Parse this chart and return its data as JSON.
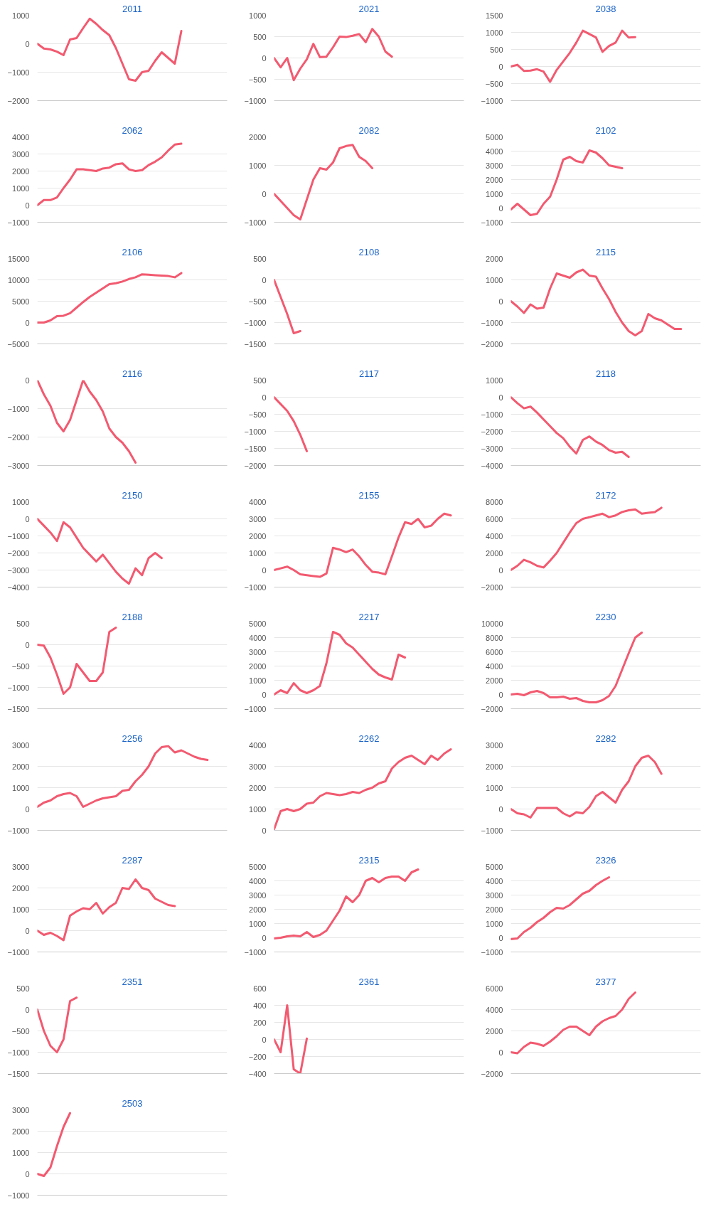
{
  "chart_data": [
    {
      "type": "line",
      "title": "2011",
      "color": "#f25a70",
      "grid": "y",
      "ylim": [
        -2000,
        1000
      ],
      "yticks": [
        -2000,
        -1000,
        0,
        1000
      ],
      "categories": [
        null,
        null,
        null,
        null,
        null,
        null,
        null,
        null,
        null,
        null,
        null,
        null,
        null,
        null,
        null,
        null,
        null,
        null,
        null,
        null,
        null,
        null,
        null,
        null,
        null,
        null,
        null,
        null,
        null,
        null
      ],
      "values": [
        0,
        -170,
        -200,
        -280,
        -400,
        150,
        200,
        550,
        880,
        700,
        480,
        300,
        -150,
        -700,
        -1250,
        -1300,
        -1000,
        -950,
        -600,
        -300,
        -500,
        -700,
        450,
        null,
        null,
        null,
        null,
        null,
        null,
        null
      ]
    },
    {
      "type": "line",
      "title": "2021",
      "color": "#f25a70",
      "grid": "y",
      "ylim": [
        -1000,
        1000
      ],
      "yticks": [
        -1000,
        -500,
        0,
        500,
        1000
      ],
      "categories": [
        null,
        null,
        null,
        null,
        null,
        null,
        null,
        null,
        null,
        null,
        null,
        null,
        null,
        null,
        null,
        null,
        null,
        null,
        null,
        null,
        null,
        null,
        null,
        null,
        null,
        null,
        null,
        null,
        null,
        null
      ],
      "values": [
        0,
        -220,
        0,
        -520,
        -250,
        -30,
        330,
        20,
        30,
        250,
        500,
        490,
        520,
        560,
        370,
        680,
        500,
        150,
        30,
        null,
        null,
        null,
        null,
        null,
        null,
        null,
        null,
        null,
        null,
        null
      ]
    },
    {
      "type": "line",
      "title": "2038",
      "color": "#f25a70",
      "grid": "y",
      "ylim": [
        -1000,
        1500
      ],
      "yticks": [
        -1000,
        -500,
        0,
        500,
        1000,
        1500
      ],
      "categories": [
        null,
        null,
        null,
        null,
        null,
        null,
        null,
        null,
        null,
        null,
        null,
        null,
        null,
        null,
        null,
        null,
        null,
        null,
        null,
        null,
        null,
        null,
        null,
        null,
        null,
        null,
        null,
        null,
        null,
        null
      ],
      "values": [
        0,
        50,
        -130,
        -120,
        -80,
        -150,
        -450,
        -100,
        150,
        400,
        700,
        1050,
        950,
        850,
        430,
        600,
        700,
        1050,
        850,
        860,
        null,
        null,
        null,
        null,
        null,
        null,
        null,
        null,
        null,
        null
      ]
    },
    {
      "type": "line",
      "title": "2062",
      "color": "#f25a70",
      "grid": "y",
      "ylim": [
        -1000,
        4000
      ],
      "yticks": [
        -1000,
        0,
        1000,
        2000,
        3000,
        4000
      ],
      "categories": [
        null,
        null,
        null,
        null,
        null,
        null,
        null,
        null,
        null,
        null,
        null,
        null,
        null,
        null,
        null,
        null,
        null,
        null,
        null,
        null,
        null,
        null,
        null,
        null,
        null,
        null,
        null,
        null,
        null,
        null
      ],
      "values": [
        0,
        300,
        300,
        450,
        1000,
        1500,
        2100,
        2100,
        2050,
        2000,
        2150,
        2200,
        2400,
        2450,
        2100,
        2000,
        2050,
        2350,
        2550,
        2800,
        3200,
        3550,
        3600,
        null,
        null,
        null,
        null,
        null,
        null,
        null
      ]
    },
    {
      "type": "line",
      "title": "2082",
      "color": "#f25a70",
      "grid": "y",
      "ylim": [
        -1000,
        2000
      ],
      "yticks": [
        -1000,
        0,
        1000,
        2000
      ],
      "categories": [
        null,
        null,
        null,
        null,
        null,
        null,
        null,
        null,
        null,
        null,
        null,
        null,
        null,
        null,
        null,
        null,
        null,
        null,
        null,
        null,
        null,
        null,
        null,
        null,
        null,
        null,
        null,
        null,
        null,
        null
      ],
      "values": [
        0,
        -250,
        -500,
        -750,
        -900,
        -200,
        500,
        900,
        850,
        1100,
        1600,
        1680,
        1720,
        1300,
        1150,
        900,
        null,
        null,
        null,
        null,
        null,
        null,
        null,
        null,
        null,
        null,
        null,
        null,
        null,
        null
      ]
    },
    {
      "type": "line",
      "title": "2102",
      "color": "#f25a70",
      "grid": "y",
      "ylim": [
        -1000,
        5000
      ],
      "yticks": [
        -1000,
        0,
        1000,
        2000,
        3000,
        4000,
        5000
      ],
      "categories": [
        null,
        null,
        null,
        null,
        null,
        null,
        null,
        null,
        null,
        null,
        null,
        null,
        null,
        null,
        null,
        null,
        null,
        null,
        null,
        null,
        null,
        null,
        null,
        null,
        null,
        null,
        null,
        null,
        null,
        null
      ],
      "values": [
        -100,
        300,
        -100,
        -500,
        -400,
        300,
        800,
        2000,
        3400,
        3600,
        3300,
        3200,
        4050,
        3900,
        3500,
        3000,
        2900,
        2800,
        null,
        null,
        null,
        null,
        null,
        null,
        null,
        null,
        null,
        null,
        null,
        null
      ]
    },
    {
      "type": "line",
      "title": "2106",
      "color": "#f25a70",
      "grid": "y",
      "ylim": [
        -5000,
        15000
      ],
      "yticks": [
        -5000,
        0,
        5000,
        10000,
        15000
      ],
      "categories": [
        null,
        null,
        null,
        null,
        null,
        null,
        null,
        null,
        null,
        null,
        null,
        null,
        null,
        null,
        null,
        null,
        null,
        null,
        null,
        null,
        null,
        null,
        null,
        null,
        null,
        null,
        null,
        null,
        null,
        null
      ],
      "values": [
        0,
        0,
        500,
        1500,
        1600,
        2200,
        3500,
        4800,
        6000,
        7000,
        8000,
        9000,
        9200,
        9600,
        10200,
        10600,
        11300,
        11200,
        11100,
        11000,
        10900,
        10600,
        11600,
        null,
        null,
        null,
        null,
        null,
        null,
        null
      ]
    },
    {
      "type": "line",
      "title": "2108",
      "color": "#f25a70",
      "grid": "y",
      "ylim": [
        -1500,
        500
      ],
      "yticks": [
        -1500,
        -1000,
        -500,
        0,
        500
      ],
      "categories": [
        null,
        null,
        null,
        null,
        null,
        null,
        null,
        null,
        null,
        null,
        null,
        null,
        null,
        null,
        null,
        null,
        null,
        null,
        null,
        null,
        null,
        null,
        null,
        null,
        null,
        null,
        null,
        null,
        null,
        null
      ],
      "values": [
        0,
        -400,
        -800,
        -1250,
        -1200,
        null,
        null,
        null,
        null,
        null,
        null,
        null,
        null,
        null,
        null,
        null,
        null,
        null,
        null,
        null,
        null,
        null,
        null,
        null,
        null,
        null,
        null,
        null,
        null,
        null
      ]
    },
    {
      "type": "line",
      "title": "2115",
      "color": "#f25a70",
      "grid": "y",
      "ylim": [
        -2000,
        2000
      ],
      "yticks": [
        -2000,
        -1000,
        0,
        1000,
        2000
      ],
      "categories": [
        null,
        null,
        null,
        null,
        null,
        null,
        null,
        null,
        null,
        null,
        null,
        null,
        null,
        null,
        null,
        null,
        null,
        null,
        null,
        null,
        null,
        null,
        null,
        null,
        null,
        null,
        null,
        null,
        null,
        null
      ],
      "values": [
        0,
        -250,
        -550,
        -150,
        -350,
        -300,
        600,
        1300,
        1200,
        1100,
        1350,
        1480,
        1200,
        1150,
        600,
        100,
        -500,
        -1000,
        -1400,
        -1600,
        -1400,
        -600,
        -800,
        -900,
        -1100,
        -1300,
        -1300,
        null,
        null,
        null
      ]
    },
    {
      "type": "line",
      "title": "2116",
      "color": "#f25a70",
      "grid": "y",
      "ylim": [
        -3000,
        0
      ],
      "yticks": [
        -3000,
        -2000,
        -1000,
        0
      ],
      "categories": [
        null,
        null,
        null,
        null,
        null,
        null,
        null,
        null,
        null,
        null,
        null,
        null,
        null,
        null,
        null,
        null,
        null,
        null,
        null,
        null,
        null,
        null,
        null,
        null,
        null,
        null,
        null,
        null,
        null,
        null
      ],
      "values": [
        0,
        -500,
        -900,
        -1500,
        -1800,
        -1400,
        -700,
        0,
        -400,
        -700,
        -1100,
        -1700,
        -2000,
        -2200,
        -2500,
        -2900,
        null,
        null,
        null,
        null,
        null,
        null,
        null,
        null,
        null,
        null,
        null,
        null,
        null,
        null
      ]
    },
    {
      "type": "line",
      "title": "2117",
      "color": "#f25a70",
      "grid": "y",
      "ylim": [
        -2000,
        500
      ],
      "yticks": [
        -2000,
        -1500,
        -1000,
        -500,
        0,
        500
      ],
      "categories": [
        null,
        null,
        null,
        null,
        null,
        null,
        null,
        null,
        null,
        null,
        null,
        null,
        null,
        null,
        null,
        null,
        null,
        null,
        null,
        null,
        null,
        null,
        null,
        null,
        null,
        null,
        null,
        null,
        null,
        null
      ],
      "values": [
        0,
        -200,
        -400,
        -700,
        -1100,
        -1580,
        null,
        null,
        null,
        null,
        null,
        null,
        null,
        null,
        null,
        null,
        null,
        null,
        null,
        null,
        null,
        null,
        null,
        null,
        null,
        null,
        null,
        null,
        null,
        null
      ]
    },
    {
      "type": "line",
      "title": "2118",
      "color": "#f25a70",
      "grid": "y",
      "ylim": [
        -4000,
        1000
      ],
      "yticks": [
        -4000,
        -3000,
        -2000,
        -1000,
        0,
        1000
      ],
      "categories": [
        null,
        null,
        null,
        null,
        null,
        null,
        null,
        null,
        null,
        null,
        null,
        null,
        null,
        null,
        null,
        null,
        null,
        null,
        null,
        null,
        null,
        null,
        null,
        null,
        null,
        null,
        null,
        null,
        null,
        null
      ],
      "values": [
        0,
        -350,
        -650,
        -550,
        -900,
        -1300,
        -1700,
        -2100,
        -2400,
        -2900,
        -3300,
        -2500,
        -2300,
        -2600,
        -2800,
        -3100,
        -3250,
        -3200,
        -3500,
        null,
        null,
        null,
        null,
        null,
        null,
        null,
        null,
        null,
        null,
        null
      ]
    },
    {
      "type": "line",
      "title": "2150",
      "color": "#f25a70",
      "grid": "y",
      "ylim": [
        -4000,
        1000
      ],
      "yticks": [
        -4000,
        -3000,
        -2000,
        -1000,
        0,
        1000
      ],
      "categories": [
        null,
        null,
        null,
        null,
        null,
        null,
        null,
        null,
        null,
        null,
        null,
        null,
        null,
        null,
        null,
        null,
        null,
        null,
        null,
        null,
        null,
        null,
        null,
        null,
        null,
        null,
        null,
        null,
        null,
        null
      ],
      "values": [
        0,
        -400,
        -800,
        -1300,
        -200,
        -500,
        -1100,
        -1700,
        -2100,
        -2500,
        -2100,
        -2600,
        -3100,
        -3500,
        -3800,
        -2900,
        -3300,
        -2300,
        -2000,
        -2300,
        null,
        null,
        null,
        null,
        null,
        null,
        null,
        null,
        null,
        null
      ]
    },
    {
      "type": "line",
      "title": "2155",
      "color": "#f25a70",
      "grid": "y",
      "ylim": [
        -1000,
        4000
      ],
      "yticks": [
        -1000,
        0,
        1000,
        2000,
        3000,
        4000
      ],
      "categories": [
        null,
        null,
        null,
        null,
        null,
        null,
        null,
        null,
        null,
        null,
        null,
        null,
        null,
        null,
        null,
        null,
        null,
        null,
        null,
        null,
        null,
        null,
        null,
        null,
        null,
        null,
        null,
        null,
        null,
        null
      ],
      "values": [
        0,
        100,
        200,
        0,
        -250,
        -300,
        -350,
        -400,
        -200,
        1300,
        1200,
        1050,
        1200,
        800,
        300,
        -100,
        -150,
        -250,
        800,
        1900,
        2800,
        2700,
        3000,
        2500,
        2600,
        3000,
        3300,
        3200,
        null,
        null
      ]
    },
    {
      "type": "line",
      "title": "2172",
      "color": "#f25a70",
      "grid": "y",
      "ylim": [
        -2000,
        8000
      ],
      "yticks": [
        -2000,
        0,
        2000,
        4000,
        6000,
        8000
      ],
      "categories": [
        null,
        null,
        null,
        null,
        null,
        null,
        null,
        null,
        null,
        null,
        null,
        null,
        null,
        null,
        null,
        null,
        null,
        null,
        null,
        null,
        null,
        null,
        null,
        null,
        null,
        null,
        null,
        null,
        null,
        null
      ],
      "values": [
        0,
        500,
        1200,
        900,
        500,
        300,
        1100,
        2000,
        3200,
        4400,
        5500,
        6000,
        6200,
        6400,
        6600,
        6200,
        6400,
        6800,
        7000,
        7100,
        6600,
        6700,
        6800,
        7300,
        null,
        null,
        null,
        null,
        null,
        null
      ]
    },
    {
      "type": "line",
      "title": "2188",
      "color": "#f25a70",
      "grid": "y",
      "ylim": [
        -1500,
        500
      ],
      "yticks": [
        -1500,
        -1000,
        -500,
        0,
        500
      ],
      "categories": [
        null,
        null,
        null,
        null,
        null,
        null,
        null,
        null,
        null,
        null,
        null,
        null,
        null,
        null,
        null,
        null,
        null,
        null,
        null,
        null,
        null,
        null,
        null,
        null,
        null,
        null,
        null,
        null,
        null,
        null
      ],
      "values": [
        0,
        -20,
        -300,
        -700,
        -1150,
        -1000,
        -450,
        -650,
        -850,
        -850,
        -650,
        300,
        400,
        null,
        null,
        null,
        null,
        null,
        null,
        null,
        null,
        null,
        null,
        null,
        null,
        null,
        null,
        null,
        null,
        null
      ]
    },
    {
      "type": "line",
      "title": "2217",
      "color": "#f25a70",
      "grid": "y",
      "ylim": [
        -1000,
        5000
      ],
      "yticks": [
        -1000,
        0,
        1000,
        2000,
        3000,
        4000,
        5000
      ],
      "categories": [
        null,
        null,
        null,
        null,
        null,
        null,
        null,
        null,
        null,
        null,
        null,
        null,
        null,
        null,
        null,
        null,
        null,
        null,
        null,
        null,
        null,
        null,
        null,
        null,
        null,
        null,
        null,
        null,
        null,
        null
      ],
      "values": [
        0,
        300,
        100,
        800,
        300,
        100,
        300,
        600,
        2200,
        4400,
        4200,
        3600,
        3300,
        2800,
        2300,
        1800,
        1400,
        1200,
        1050,
        2800,
        2600,
        null,
        null,
        null,
        null,
        null,
        null,
        null,
        null,
        null
      ]
    },
    {
      "type": "line",
      "title": "2230",
      "color": "#f25a70",
      "grid": "y",
      "ylim": [
        -2000,
        10000
      ],
      "yticks": [
        -2000,
        0,
        2000,
        4000,
        6000,
        8000,
        10000
      ],
      "categories": [
        null,
        null,
        null,
        null,
        null,
        null,
        null,
        null,
        null,
        null,
        null,
        null,
        null,
        null,
        null,
        null,
        null,
        null,
        null,
        null,
        null,
        null,
        null,
        null,
        null,
        null,
        null,
        null,
        null,
        null
      ],
      "values": [
        0,
        100,
        -100,
        300,
        500,
        200,
        -400,
        -400,
        -300,
        -600,
        -500,
        -900,
        -1100,
        -1100,
        -800,
        -200,
        1200,
        3500,
        5800,
        8000,
        8700,
        null,
        null,
        null,
        null,
        null,
        null,
        null,
        null,
        null
      ]
    },
    {
      "type": "line",
      "title": "2256",
      "color": "#f25a70",
      "grid": "y",
      "ylim": [
        -1000,
        3000
      ],
      "yticks": [
        -1000,
        0,
        1000,
        2000,
        3000
      ],
      "categories": [
        null,
        null,
        null,
        null,
        null,
        null,
        null,
        null,
        null,
        null,
        null,
        null,
        null,
        null,
        null,
        null,
        null,
        null,
        null,
        null,
        null,
        null,
        null,
        null,
        null,
        null,
        null,
        null,
        null,
        null
      ],
      "values": [
        100,
        300,
        400,
        600,
        700,
        750,
        600,
        100,
        250,
        400,
        500,
        550,
        600,
        850,
        900,
        1300,
        1600,
        2000,
        2600,
        2900,
        2950,
        2650,
        2750,
        2600,
        2450,
        2350,
        2300,
        null,
        null,
        null
      ]
    },
    {
      "type": "line",
      "title": "2262",
      "color": "#f25a70",
      "grid": "y",
      "ylim": [
        0,
        4000
      ],
      "yticks": [
        0,
        1000,
        2000,
        3000,
        4000
      ],
      "categories": [
        null,
        null,
        null,
        null,
        null,
        null,
        null,
        null,
        null,
        null,
        null,
        null,
        null,
        null,
        null,
        null,
        null,
        null,
        null,
        null,
        null,
        null,
        null,
        null,
        null,
        null,
        null,
        null,
        null,
        null
      ],
      "values": [
        50,
        900,
        1000,
        900,
        1000,
        1250,
        1300,
        1600,
        1750,
        1700,
        1650,
        1700,
        1800,
        1750,
        1900,
        2000,
        2200,
        2300,
        2900,
        3200,
        3400,
        3500,
        3300,
        3100,
        3500,
        3300,
        3600,
        3800,
        null,
        null
      ]
    },
    {
      "type": "line",
      "title": "2282",
      "color": "#f25a70",
      "grid": "y",
      "ylim": [
        -1000,
        3000
      ],
      "yticks": [
        -1000,
        0,
        1000,
        2000,
        3000
      ],
      "categories": [
        null,
        null,
        null,
        null,
        null,
        null,
        null,
        null,
        null,
        null,
        null,
        null,
        null,
        null,
        null,
        null,
        null,
        null,
        null,
        null,
        null,
        null,
        null,
        null,
        null,
        null,
        null,
        null,
        null,
        null
      ],
      "values": [
        0,
        -200,
        -250,
        -400,
        50,
        50,
        50,
        50,
        -200,
        -350,
        -150,
        -200,
        100,
        600,
        800,
        550,
        300,
        900,
        1300,
        2000,
        2400,
        2500,
        2200,
        1650,
        null,
        null,
        null,
        null,
        null,
        null
      ]
    },
    {
      "type": "line",
      "title": "2287",
      "color": "#f25a70",
      "grid": "y",
      "ylim": [
        -1000,
        3000
      ],
      "yticks": [
        -1000,
        0,
        1000,
        2000,
        3000
      ],
      "categories": [
        null,
        null,
        null,
        null,
        null,
        null,
        null,
        null,
        null,
        null,
        null,
        null,
        null,
        null,
        null,
        null,
        null,
        null,
        null,
        null,
        null,
        null,
        null,
        null,
        null,
        null,
        null,
        null,
        null,
        null
      ],
      "values": [
        0,
        -200,
        -100,
        -250,
        -450,
        700,
        900,
        1050,
        1000,
        1300,
        800,
        1100,
        1300,
        2000,
        1950,
        2400,
        2000,
        1900,
        1500,
        1350,
        1200,
        1150,
        null,
        null,
        null,
        null,
        null,
        null,
        null,
        null
      ]
    },
    {
      "type": "line",
      "title": "2315",
      "color": "#f25a70",
      "grid": "y",
      "ylim": [
        -1000,
        5000
      ],
      "yticks": [
        -1000,
        0,
        1000,
        2000,
        3000,
        4000,
        5000
      ],
      "categories": [
        null,
        null,
        null,
        null,
        null,
        null,
        null,
        null,
        null,
        null,
        null,
        null,
        null,
        null,
        null,
        null,
        null,
        null,
        null,
        null,
        null,
        null,
        null,
        null,
        null,
        null,
        null,
        null,
        null,
        null
      ],
      "values": [
        -50,
        0,
        100,
        150,
        100,
        400,
        50,
        200,
        500,
        1200,
        1900,
        2900,
        2500,
        3000,
        4000,
        4200,
        3900,
        4200,
        4300,
        4300,
        4000,
        4600,
        4800,
        null,
        null,
        null,
        null,
        null,
        null,
        null
      ]
    },
    {
      "type": "line",
      "title": "2326",
      "color": "#f25a70",
      "grid": "y",
      "ylim": [
        -1000,
        5000
      ],
      "yticks": [
        -1000,
        0,
        1000,
        2000,
        3000,
        4000,
        5000
      ],
      "categories": [
        null,
        null,
        null,
        null,
        null,
        null,
        null,
        null,
        null,
        null,
        null,
        null,
        null,
        null,
        null,
        null,
        null,
        null,
        null,
        null,
        null,
        null,
        null,
        null,
        null,
        null,
        null,
        null,
        null,
        null
      ],
      "values": [
        -100,
        -50,
        400,
        700,
        1100,
        1400,
        1800,
        2100,
        2050,
        2300,
        2700,
        3100,
        3300,
        3700,
        4000,
        4250,
        null,
        null,
        null,
        null,
        null,
        null,
        null,
        null,
        null,
        null,
        null,
        null,
        null,
        null
      ]
    },
    {
      "type": "line",
      "title": "2351",
      "color": "#f25a70",
      "grid": "y",
      "ylim": [
        -1500,
        500
      ],
      "yticks": [
        -1500,
        -1000,
        -500,
        0,
        500
      ],
      "categories": [
        null,
        null,
        null,
        null,
        null,
        null,
        null,
        null,
        null,
        null,
        null,
        null,
        null,
        null,
        null,
        null,
        null,
        null,
        null,
        null,
        null,
        null,
        null,
        null,
        null,
        null,
        null,
        null,
        null,
        null
      ],
      "values": [
        0,
        -500,
        -850,
        -1000,
        -700,
        200,
        280,
        null,
        null,
        null,
        null,
        null,
        null,
        null,
        null,
        null,
        null,
        null,
        null,
        null,
        null,
        null,
        null,
        null,
        null,
        null,
        null,
        null,
        null,
        null
      ]
    },
    {
      "type": "line",
      "title": "2361",
      "color": "#f25a70",
      "grid": "y",
      "ylim": [
        -400,
        600
      ],
      "yticks": [
        -400,
        -200,
        0,
        200,
        400,
        600
      ],
      "categories": [
        null,
        null,
        null,
        null,
        null,
        null,
        null,
        null,
        null,
        null,
        null,
        null,
        null,
        null,
        null,
        null,
        null,
        null,
        null,
        null,
        null,
        null,
        null,
        null,
        null,
        null,
        null,
        null,
        null,
        null
      ],
      "values": [
        0,
        -150,
        400,
        -350,
        -400,
        10,
        null,
        null,
        null,
        null,
        null,
        null,
        null,
        null,
        null,
        null,
        null,
        null,
        null,
        null,
        null,
        null,
        null,
        null,
        null,
        null,
        null,
        null,
        null,
        null
      ]
    },
    {
      "type": "line",
      "title": "2377",
      "color": "#f25a70",
      "grid": "y",
      "ylim": [
        -2000,
        6000
      ],
      "yticks": [
        -2000,
        0,
        2000,
        4000,
        6000
      ],
      "categories": [
        null,
        null,
        null,
        null,
        null,
        null,
        null,
        null,
        null,
        null,
        null,
        null,
        null,
        null,
        null,
        null,
        null,
        null,
        null,
        null,
        null,
        null,
        null,
        null,
        null,
        null,
        null,
        null,
        null,
        null
      ],
      "values": [
        0,
        -100,
        500,
        900,
        800,
        600,
        1000,
        1500,
        2100,
        2400,
        2400,
        2000,
        1600,
        2400,
        2900,
        3200,
        3400,
        4000,
        5000,
        5600,
        null,
        null,
        null,
        null,
        null,
        null,
        null,
        null,
        null,
        null
      ]
    },
    {
      "type": "line",
      "title": "2503",
      "color": "#f25a70",
      "grid": "y",
      "ylim": [
        -1000,
        3000
      ],
      "yticks": [
        -1000,
        0,
        1000,
        2000,
        3000
      ],
      "categories": [
        null,
        null,
        null,
        null,
        null,
        null,
        null,
        null,
        null,
        null,
        null,
        null,
        null,
        null,
        null,
        null,
        null,
        null,
        null,
        null,
        null,
        null,
        null,
        null,
        null,
        null,
        null,
        null,
        null,
        null
      ],
      "values": [
        0,
        -100,
        300,
        1300,
        2200,
        2850,
        null,
        null,
        null,
        null,
        null,
        null,
        null,
        null,
        null,
        null,
        null,
        null,
        null,
        null,
        null,
        null,
        null,
        null,
        null,
        null,
        null,
        null,
        null,
        null
      ]
    }
  ]
}
